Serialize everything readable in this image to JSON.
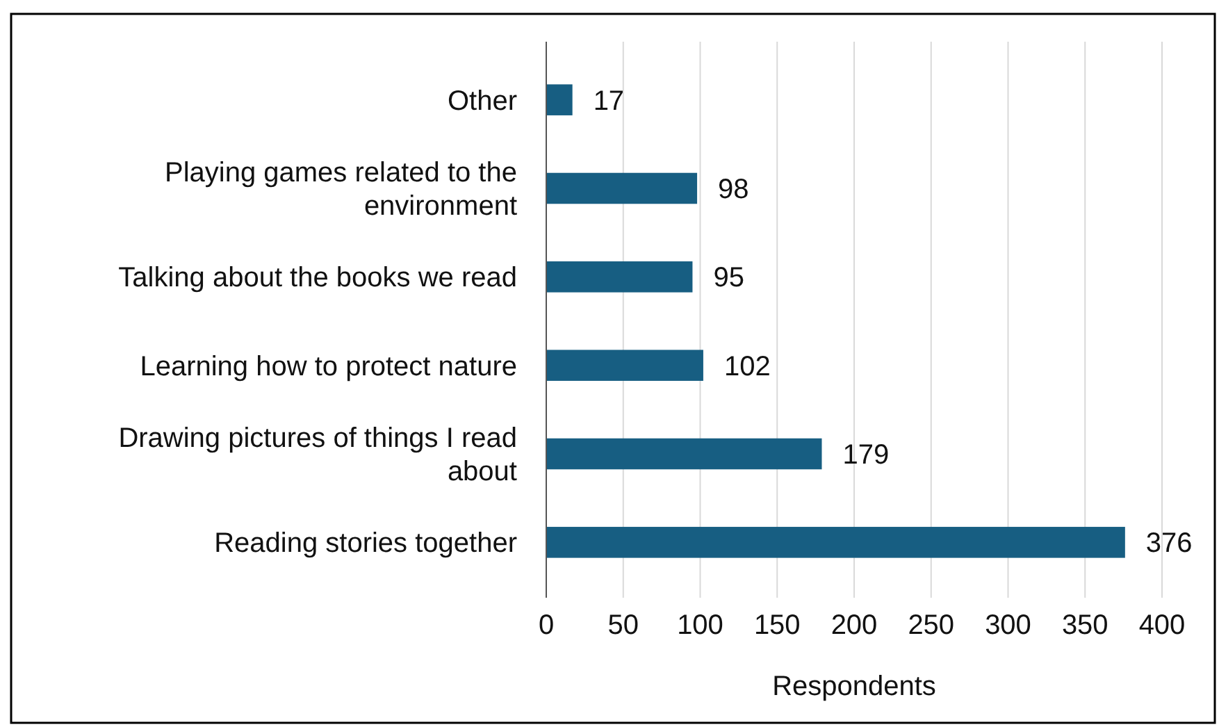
{
  "chart_data": {
    "type": "bar",
    "orientation": "horizontal",
    "xlabel": "Respondents",
    "categories": [
      "Other",
      "Playing games related to the environment",
      "Talking about the books we read",
      "Learning how to protect nature",
      "Drawing pictures of things I read about",
      "Reading stories together"
    ],
    "values": [
      17,
      98,
      95,
      102,
      179,
      376
    ],
    "color": "#175e82",
    "data_labels": true,
    "xlim": [
      0,
      400
    ],
    "xticks": [
      0,
      50,
      100,
      150,
      200,
      250,
      300,
      350,
      400
    ],
    "grid": "x"
  }
}
